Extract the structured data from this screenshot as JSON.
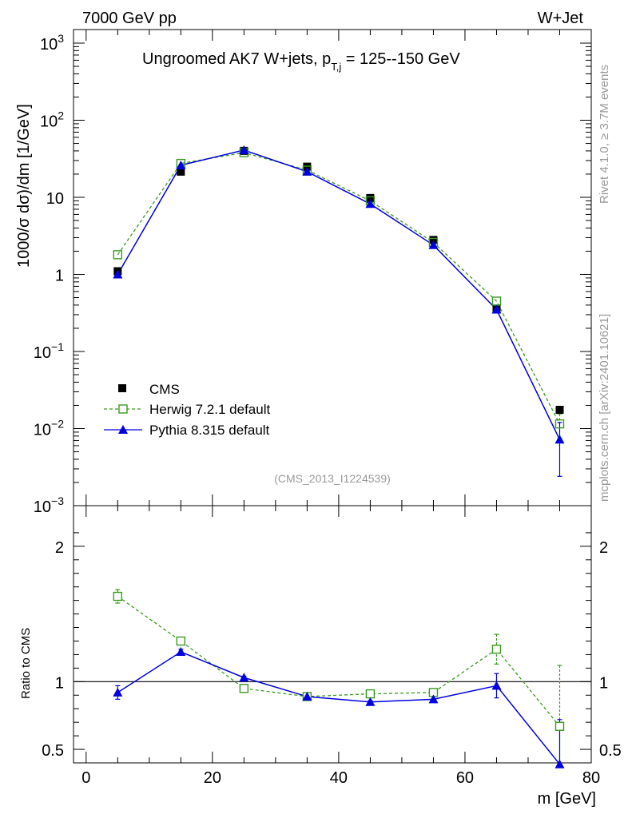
{
  "header": {
    "left": "7000 GeV pp",
    "right": "W+Jet"
  },
  "side": {
    "rivet": "Rivet 4.1.0, ≥ 3.7M events",
    "mcplots": "mcplots.cern.ch [arXiv:2401.10621]"
  },
  "colors": {
    "data": "#000000",
    "herwig": "#3a9a1f",
    "pythia": "#0000e0",
    "watermark": "#999999"
  },
  "chart_data": [
    {
      "type": "line",
      "yscale": "log",
      "title_main": "Ungroomed AK7 W+jets, p",
      "title_sub": "T,j",
      "title_tail": " = 125--150 GeV",
      "ylabel": "1000/σ  dσ)/dm [1/GeV]",
      "ylim": [
        0.001,
        1500
      ],
      "xlim": [
        -2,
        80
      ],
      "y_ticks": [
        {
          "value": 1000,
          "label": "10",
          "exp": "3"
        },
        {
          "value": 100,
          "label": "10",
          "exp": "2"
        },
        {
          "value": 10,
          "label": "10",
          "exp": ""
        },
        {
          "value": 1,
          "label": "1",
          "exp": ""
        },
        {
          "value": 0.1,
          "label": "10",
          "exp": "−1"
        },
        {
          "value": 0.01,
          "label": "10",
          "exp": "−2"
        },
        {
          "value": 0.001,
          "label": "10",
          "exp": "−3"
        }
      ],
      "watermark": "(CMS_2013_I1224539)",
      "x": [
        5,
        15,
        25,
        35,
        45,
        55,
        65,
        75
      ],
      "series": [
        {
          "name": "CMS",
          "marker": "square-filled",
          "values": [
            1.1,
            21.5,
            40.0,
            25.0,
            9.8,
            2.8,
            0.36,
            0.0175
          ]
        },
        {
          "name": "Herwig 7.2.1 default",
          "marker": "square-open",
          "line": "dashed",
          "values": [
            1.8,
            27.5,
            38.0,
            22.5,
            9.0,
            2.6,
            0.45,
            0.0115
          ],
          "err": [
            0,
            0,
            0,
            0,
            0,
            0,
            0,
            0.004
          ]
        },
        {
          "name": "Pythia 8.315 default",
          "marker": "triangle-filled",
          "line": "solid",
          "values": [
            1.0,
            26.0,
            41.0,
            21.5,
            8.2,
            2.4,
            0.35,
            0.0072
          ],
          "err": [
            0,
            0,
            0,
            0,
            0,
            0,
            0,
            0.0048
          ]
        }
      ]
    },
    {
      "type": "line",
      "ylabel": "Ratio to CMS",
      "xlabel": "m [GeV]",
      "ylim": [
        0.4,
        2.3
      ],
      "xlim": [
        -2,
        80
      ],
      "x_ticks": [
        0,
        20,
        40,
        60,
        80
      ],
      "y_ticks": [
        {
          "value": 0.5,
          "label": "0.5"
        },
        {
          "value": 1,
          "label": "1"
        },
        {
          "value": 2,
          "label": "2"
        }
      ],
      "reference": 1.0,
      "x": [
        5,
        15,
        25,
        35,
        45,
        55,
        65,
        75
      ],
      "series": [
        {
          "name": "Herwig 7.2.1 default",
          "values": [
            1.63,
            1.3,
            0.95,
            0.89,
            0.91,
            0.92,
            1.24,
            0.67
          ],
          "err": [
            0.05,
            0.02,
            0.01,
            0.01,
            0.01,
            0.02,
            0.11,
            0.45
          ]
        },
        {
          "name": "Pythia 8.315 default",
          "values": [
            0.92,
            1.22,
            1.03,
            0.89,
            0.85,
            0.87,
            0.97,
            0.39
          ],
          "err": [
            0.05,
            0.02,
            0.01,
            0.01,
            0.01,
            0.02,
            0.09,
            0.33
          ]
        }
      ]
    }
  ]
}
